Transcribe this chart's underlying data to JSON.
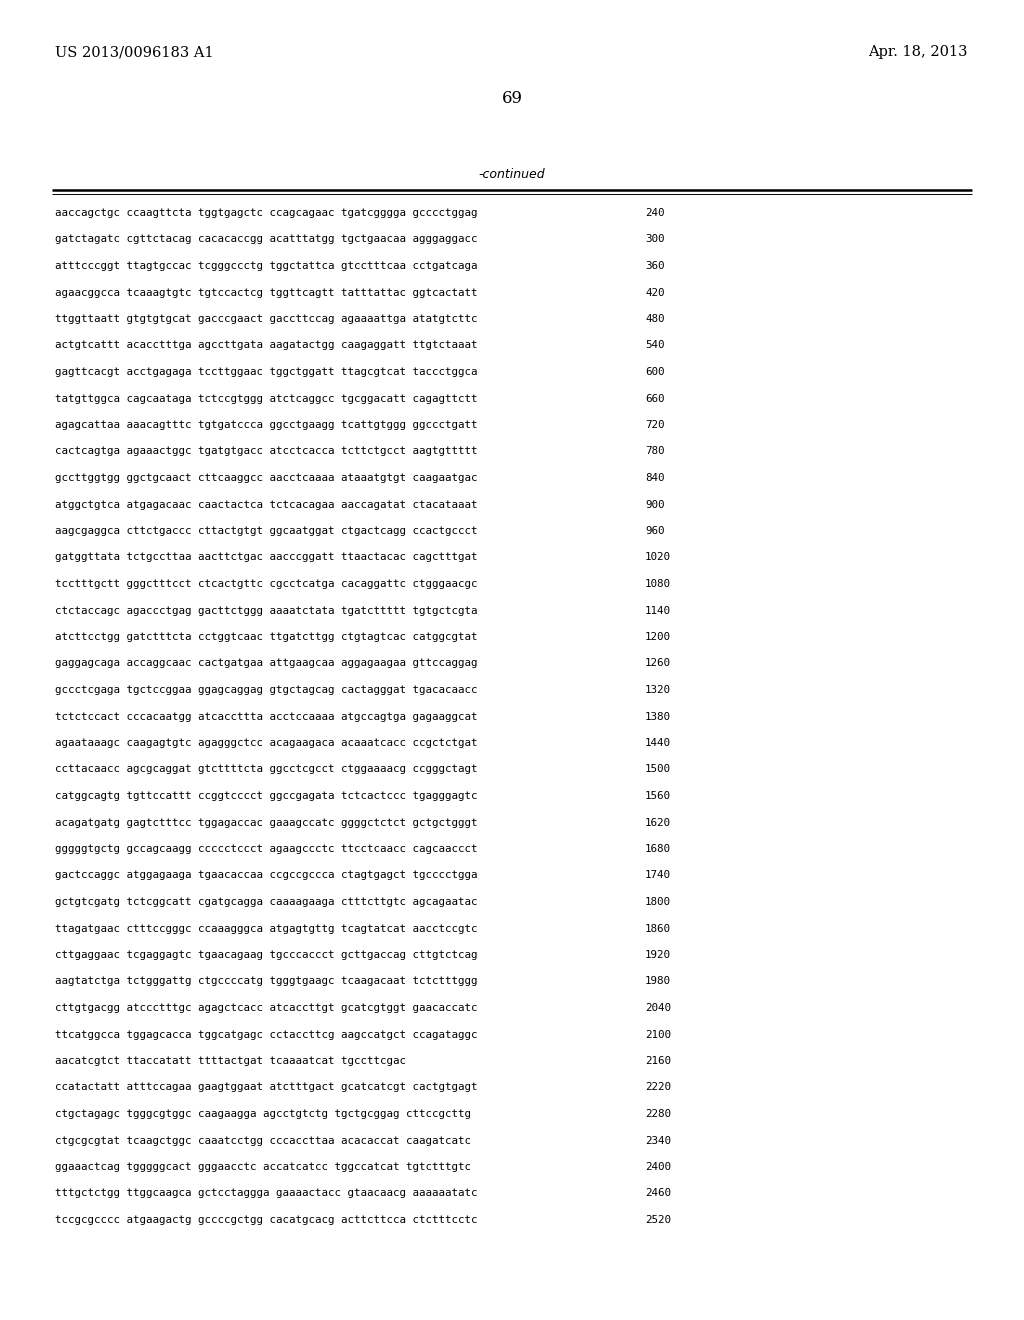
{
  "header_left": "US 2013/0096183 A1",
  "header_right": "Apr. 18, 2013",
  "page_number": "69",
  "continued_label": "-continued",
  "background_color": "#ffffff",
  "text_color": "#000000",
  "font_size_header": 10.5,
  "font_size_body": 7.8,
  "font_size_page": 12,
  "sequences": [
    [
      "aaccagctgc ccaagttcta tggtgagctc ccagcagaac tgatcgggga gcccctggag",
      "240"
    ],
    [
      "gatctagatc cgttctacag cacacaccgg acatttatgg tgctgaacaa agggaggacc",
      "300"
    ],
    [
      "atttcccggt ttagtgccac tcgggccctg tggctattca gtcctttcaa cctgatcaga",
      "360"
    ],
    [
      "agaacggcca tcaaagtgtc tgtccactcg tggttcagtt tatttattac ggtcactatt",
      "420"
    ],
    [
      "ttggttaatt gtgtgtgcat gacccgaact gaccttccag agaaaattga atatgtcttc",
      "480"
    ],
    [
      "actgtcattt acacctttga agccttgata aagatactgg caagaggatt ttgtctaaat",
      "540"
    ],
    [
      "gagttcacgt acctgagaga tccttggaac tggctggatt ttagcgtcat taccctggca",
      "600"
    ],
    [
      "tatgttggca cagcaataga tctccgtggg atctcaggcc tgcggacatt cagagttctt",
      "660"
    ],
    [
      "agagcattaa aaacagtttc tgtgatccca ggcctgaagg tcattgtggg ggccctgatt",
      "720"
    ],
    [
      "cactcagtga agaaactggc tgatgtgacc atcctcacca tcttctgcct aagtgttttt",
      "780"
    ],
    [
      "gccttggtgg ggctgcaact cttcaaggcc aacctcaaaa ataaatgtgt caagaatgac",
      "840"
    ],
    [
      "atggctgtca atgagacaac caactactca tctcacagaa aaccagatat ctacataaat",
      "900"
    ],
    [
      "aagcgaggca cttctgaccc cttactgtgt ggcaatggat ctgactcagg ccactgccct",
      "960"
    ],
    [
      "gatggttata tctgccttaa aacttctgac aacccggatt ttaactacac cagctttgat",
      "1020"
    ],
    [
      "tcctttgctt gggctttcct ctcactgttc cgcctcatga cacaggattc ctgggaacgc",
      "1080"
    ],
    [
      "ctctaccagc agaccctgag gacttctggg aaaatctata tgatcttttt tgtgctcgta",
      "1140"
    ],
    [
      "atcttcctgg gatctttcta cctggtcaac ttgatcttgg ctgtagtcac catggcgtat",
      "1200"
    ],
    [
      "gaggagcaga accaggcaac cactgatgaa attgaagcaa aggagaagaa gttccaggag",
      "1260"
    ],
    [
      "gccctcgaga tgctccggaa ggagcaggag gtgctagcag cactagggat tgacacaacc",
      "1320"
    ],
    [
      "tctctccact cccacaatgg atcaccttta acctccaaaa atgccagtga gagaaggcat",
      "1380"
    ],
    [
      "agaataaagc caagagtgtc agagggctcc acagaagaca acaaatcacc ccgctctgat",
      "1440"
    ],
    [
      "ccttacaacc agcgcaggat gtcttttcta ggcctcgcct ctggaaaacg ccgggctagt",
      "1500"
    ],
    [
      "catggcagtg tgttccattt ccggtcccct ggccgagata tctcactccc tgagggagtc",
      "1560"
    ],
    [
      "acagatgatg gagtctttcc tggagaccac gaaagccatc ggggctctct gctgctgggt",
      "1620"
    ],
    [
      "gggggtgctg gccagcaagg ccccctccct agaagccctc ttcctcaacc cagcaaccct",
      "1680"
    ],
    [
      "gactccaggc atggagaaga tgaacaccaa ccgccgccca ctagtgagct tgcccctgga",
      "1740"
    ],
    [
      "gctgtcgatg tctcggcatt cgatgcagga caaaagaaga ctttcttgtc agcagaatac",
      "1800"
    ],
    [
      "ttagatgaac ctttccgggc ccaaagggca atgagtgttg tcagtatcat aacctccgtc",
      "1860"
    ],
    [
      "cttgaggaac tcgaggagtc tgaacagaag tgcccaccct gcttgaccag cttgtctcag",
      "1920"
    ],
    [
      "aagtatctga tctgggattg ctgccccatg tgggtgaagc tcaagacaat tctctttggg",
      "1980"
    ],
    [
      "cttgtgacgg atccctttgc agagctcacc atcaccttgt gcatcgtggt gaacaccatc",
      "2040"
    ],
    [
      "ttcatggcca tggagcacca tggcatgagc cctaccttcg aagccatgct ccagataggc",
      "2100"
    ],
    [
      "aacatcgtct ttaccatatt ttttactgat tcaaaatcat tgccttcgac",
      "2160"
    ],
    [
      "ccatactatt atttccagaa gaagtggaat atctttgact gcatcatcgt cactgtgagt",
      "2220"
    ],
    [
      "ctgctagagc tgggcgtggc caagaagga agcctgtctg tgctgcggag cttccgcttg",
      "2280"
    ],
    [
      "ctgcgcgtat tcaagctggc caaatcctgg cccaccttaa acacaccat caagatcatc",
      "2340"
    ],
    [
      "ggaaactcag tgggggcact gggaacctc accatcatcc tggccatcat tgtctttgtc",
      "2400"
    ],
    [
      "tttgctctgg ttggcaagca gctcctaggga gaaaactacc gtaacaacg aaaaaatatc",
      "2460"
    ],
    [
      "tccgcgcccc atgaagactg gccccgctgg cacatgcacg acttcttcca ctctttcctc",
      "2520"
    ]
  ]
}
